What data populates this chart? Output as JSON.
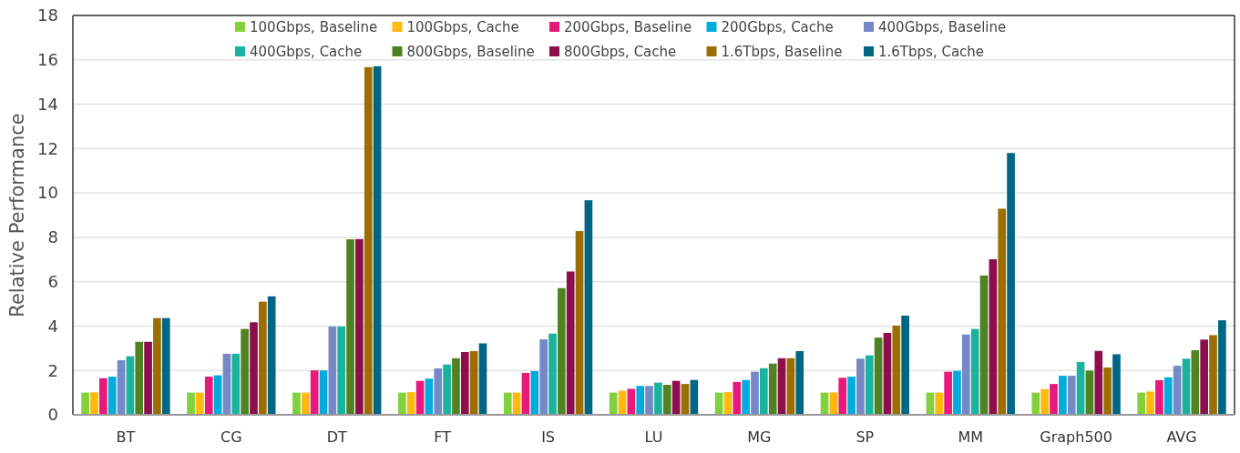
{
  "chart_data": {
    "type": "bar",
    "ylabel": "Relative Performance",
    "categories": [
      "BT",
      "CG",
      "DT",
      "FT",
      "IS",
      "LU",
      "MG",
      "SP",
      "MM",
      "Graph500",
      "AVG"
    ],
    "ylim": [
      0,
      18
    ],
    "yticks": [
      0,
      2,
      4,
      6,
      8,
      10,
      12,
      14,
      16,
      18
    ],
    "grid": "y",
    "legend": "top",
    "series": [
      {
        "name": "100Gbps, Baseline",
        "color": "#82d13c",
        "values": [
          1.0,
          1.0,
          1.0,
          1.0,
          1.0,
          1.0,
          1.0,
          1.0,
          1.0,
          1.0,
          1.0
        ]
      },
      {
        "name": "100Gbps, Cache",
        "color": "#ffb90f",
        "values": [
          1.01,
          1.0,
          1.0,
          1.02,
          1.0,
          1.08,
          1.02,
          1.01,
          1.0,
          1.16,
          1.05
        ]
      },
      {
        "name": "200Gbps, Baseline",
        "color": "#e8197c",
        "values": [
          1.65,
          1.72,
          2.0,
          1.53,
          1.89,
          1.17,
          1.48,
          1.67,
          1.94,
          1.39,
          1.56
        ]
      },
      {
        "name": "200Gbps, Cache",
        "color": "#00acdc",
        "values": [
          1.72,
          1.78,
          2.0,
          1.63,
          1.97,
          1.3,
          1.57,
          1.72,
          1.98,
          1.76,
          1.69
        ]
      },
      {
        "name": "400Gbps, Baseline",
        "color": "#7589c8",
        "values": [
          2.46,
          2.75,
          3.98,
          2.09,
          3.4,
          1.3,
          1.94,
          2.53,
          3.62,
          1.76,
          2.21
        ]
      },
      {
        "name": "400Gbps, Cache",
        "color": "#1ab39e",
        "values": [
          2.64,
          2.75,
          3.98,
          2.27,
          3.66,
          1.45,
          2.1,
          2.68,
          3.87,
          2.38,
          2.53
        ]
      },
      {
        "name": "800Gbps, Baseline",
        "color": "#4f8222",
        "values": [
          3.29,
          3.87,
          7.91,
          2.55,
          5.71,
          1.35,
          2.31,
          3.48,
          6.28,
          1.99,
          2.91
        ]
      },
      {
        "name": "800Gbps, Cache",
        "color": "#8c0e4d",
        "values": [
          3.29,
          4.17,
          7.92,
          2.83,
          6.46,
          1.53,
          2.55,
          3.69,
          7.01,
          2.88,
          3.39
        ]
      },
      {
        "name": "1.6Tbps, Baseline",
        "color": "#9c6e00",
        "values": [
          4.36,
          5.1,
          15.67,
          2.87,
          8.28,
          1.39,
          2.55,
          4.02,
          9.29,
          2.13,
          3.59
        ]
      },
      {
        "name": "1.6Tbps, Cache",
        "color": "#006684",
        "values": [
          4.36,
          5.34,
          15.71,
          3.22,
          9.67,
          1.57,
          2.87,
          4.47,
          11.8,
          2.73,
          4.26
        ]
      }
    ]
  }
}
